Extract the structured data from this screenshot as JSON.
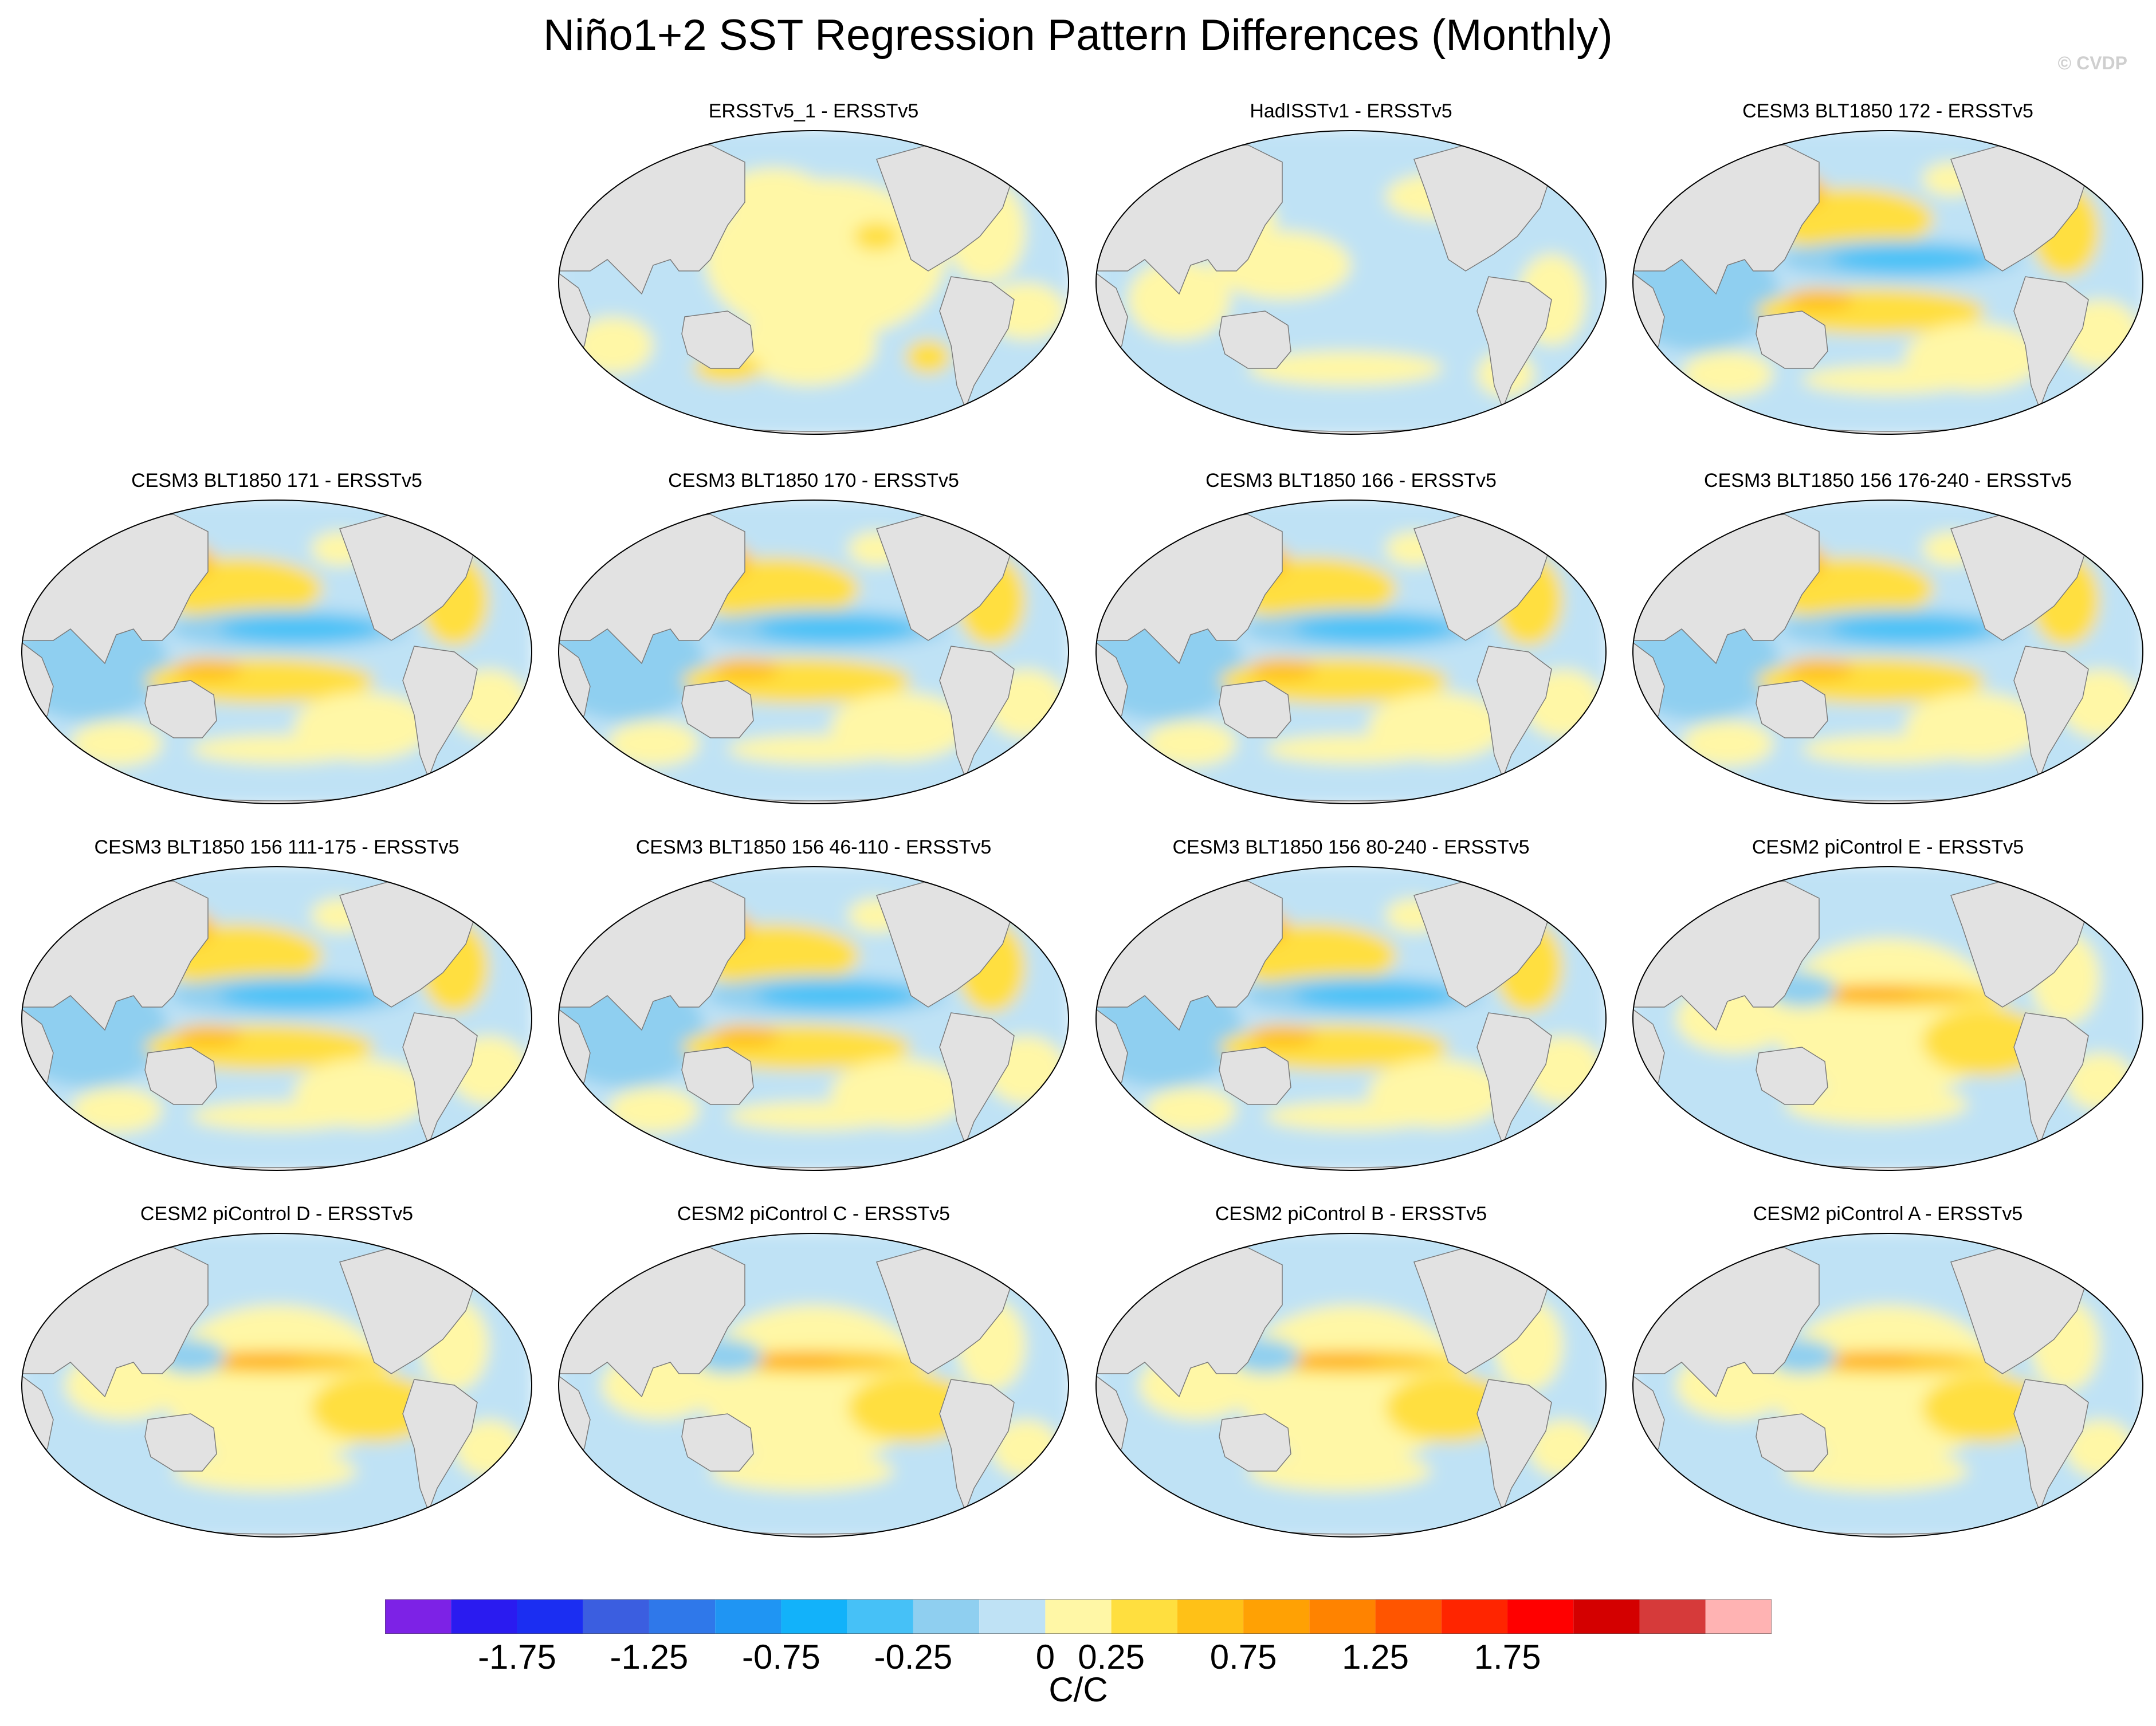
{
  "title": "Niño1+2 SST Regression Pattern Differences (Monthly)",
  "watermark": "© CVDP",
  "chart_data": {
    "type": "heatmap",
    "projection": "Robinson (Pacific-centered)",
    "grid_layout": "4 rows x 4 columns, top-left empty",
    "panels": [
      {
        "title": "ERSSTv5_1 - ERSSTv5",
        "style": "weak"
      },
      {
        "title": "HadISSTv1 - ERSSTv5",
        "style": "weak2"
      },
      {
        "title": "CESM3 BLT1850 172 - ERSSTv5",
        "style": "cesm3"
      },
      {
        "title": "CESM3 BLT1850 171 - ERSSTv5",
        "style": "cesm3"
      },
      {
        "title": "CESM3 BLT1850 170 - ERSSTv5",
        "style": "cesm3"
      },
      {
        "title": "CESM3 BLT1850 166 - ERSSTv5",
        "style": "cesm3"
      },
      {
        "title": "CESM3 BLT1850 156 176-240 - ERSSTv5",
        "style": "cesm3"
      },
      {
        "title": "CESM3 BLT1850 156 111-175 - ERSSTv5",
        "style": "cesm3"
      },
      {
        "title": "CESM3 BLT1850 156 46-110 - ERSSTv5",
        "style": "cesm3"
      },
      {
        "title": "CESM3 BLT1850 156 80-240 - ERSSTv5",
        "style": "cesm3"
      },
      {
        "title": "CESM2 piControl E - ERSSTv5",
        "style": "cesm2"
      },
      {
        "title": "CESM2 piControl D - ERSSTv5",
        "style": "cesm2"
      },
      {
        "title": "CESM2 piControl C - ERSSTv5",
        "style": "cesm2"
      },
      {
        "title": "CESM2 piControl B - ERSSTv5",
        "style": "cesm2"
      },
      {
        "title": "CESM2 piControl A - ERSSTv5",
        "style": "cesm2"
      }
    ],
    "colorbar": {
      "colors": [
        "#7d22e6",
        "#2a1bf0",
        "#1b2ef2",
        "#3b5ee0",
        "#2f78ea",
        "#1f95f3",
        "#12b2fa",
        "#46c1f7",
        "#8fcff0",
        "#bfe2f5",
        "#fff7a6",
        "#ffdf3f",
        "#ffc117",
        "#ffa104",
        "#ff8300",
        "#ff5500",
        "#ff2500",
        "#ff0000",
        "#d40000",
        "#d63a3a",
        "#ffb3b3"
      ],
      "tick_labels": [
        "-1.75",
        "-1.25",
        "-0.75",
        "-0.25",
        "0",
        "0.25",
        "0.75",
        "1.25",
        "1.75"
      ],
      "tick_boundaries": [
        2,
        4,
        6,
        8,
        10,
        11,
        13,
        15,
        17
      ],
      "units": "C/C"
    }
  }
}
